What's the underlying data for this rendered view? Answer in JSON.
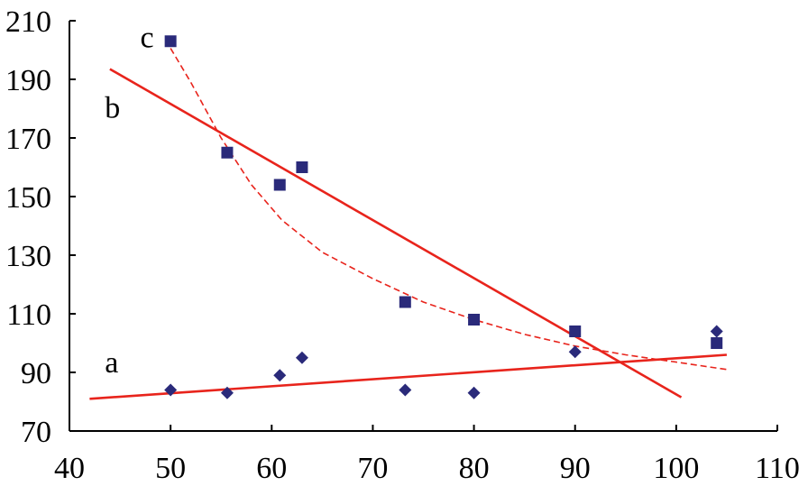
{
  "chart_data": {
    "type": "scatter",
    "xlim": [
      40,
      110
    ],
    "ylim": [
      70,
      210
    ],
    "x_ticks": [
      40,
      50,
      60,
      70,
      80,
      90,
      100,
      110
    ],
    "y_ticks": [
      70,
      90,
      110,
      130,
      150,
      170,
      190,
      210
    ],
    "x_tick_labels": [
      "40",
      "50",
      "60",
      "70",
      "80",
      "90",
      "100",
      "110"
    ],
    "y_tick_labels": [
      "70",
      "90",
      "110",
      "130",
      "150",
      "170",
      "190",
      "210"
    ],
    "grid": false,
    "colors": {
      "points": "#2a2a7a",
      "fit_line": "#e8241c",
      "fit_curve": "#e8241c",
      "axis": "#000000"
    },
    "series": [
      {
        "marker": "diamond",
        "points": [
          [
            50,
            84
          ],
          [
            55.6,
            83
          ],
          [
            60.8,
            89
          ],
          [
            63,
            95
          ],
          [
            73.2,
            84
          ],
          [
            80,
            83
          ],
          [
            90,
            97
          ],
          [
            104,
            104
          ]
        ]
      },
      {
        "marker": "square",
        "points": [
          [
            50,
            203
          ],
          [
            55.6,
            165
          ],
          [
            60.8,
            154
          ],
          [
            63,
            160
          ],
          [
            73.2,
            114
          ],
          [
            80,
            108
          ],
          [
            90,
            104
          ],
          [
            104,
            100
          ]
        ]
      }
    ],
    "fits": [
      {
        "label": "a",
        "kind": "linear",
        "style": "solid",
        "points": [
          [
            42,
            81
          ],
          [
            105,
            96
          ]
        ]
      },
      {
        "label": "b",
        "kind": "linear",
        "style": "solid",
        "points": [
          [
            44,
            193.5
          ],
          [
            100.5,
            81.5
          ]
        ]
      },
      {
        "label": "c",
        "kind": "curve",
        "style": "dashed",
        "points": [
          [
            49.5,
            203.5
          ],
          [
            52,
            189
          ],
          [
            55,
            170
          ],
          [
            58,
            154
          ],
          [
            61,
            142
          ],
          [
            65,
            131
          ],
          [
            70,
            122
          ],
          [
            75,
            114
          ],
          [
            80,
            108
          ],
          [
            85,
            103
          ],
          [
            90,
            99
          ],
          [
            95,
            96
          ],
          [
            100,
            93.5
          ],
          [
            105,
            91
          ]
        ]
      }
    ],
    "annotations": [
      {
        "text": "a",
        "x": 43.5,
        "y": 90
      },
      {
        "text": "b",
        "x": 43.5,
        "y": 177
      },
      {
        "text": "c",
        "x": 47,
        "y": 201
      }
    ]
  }
}
